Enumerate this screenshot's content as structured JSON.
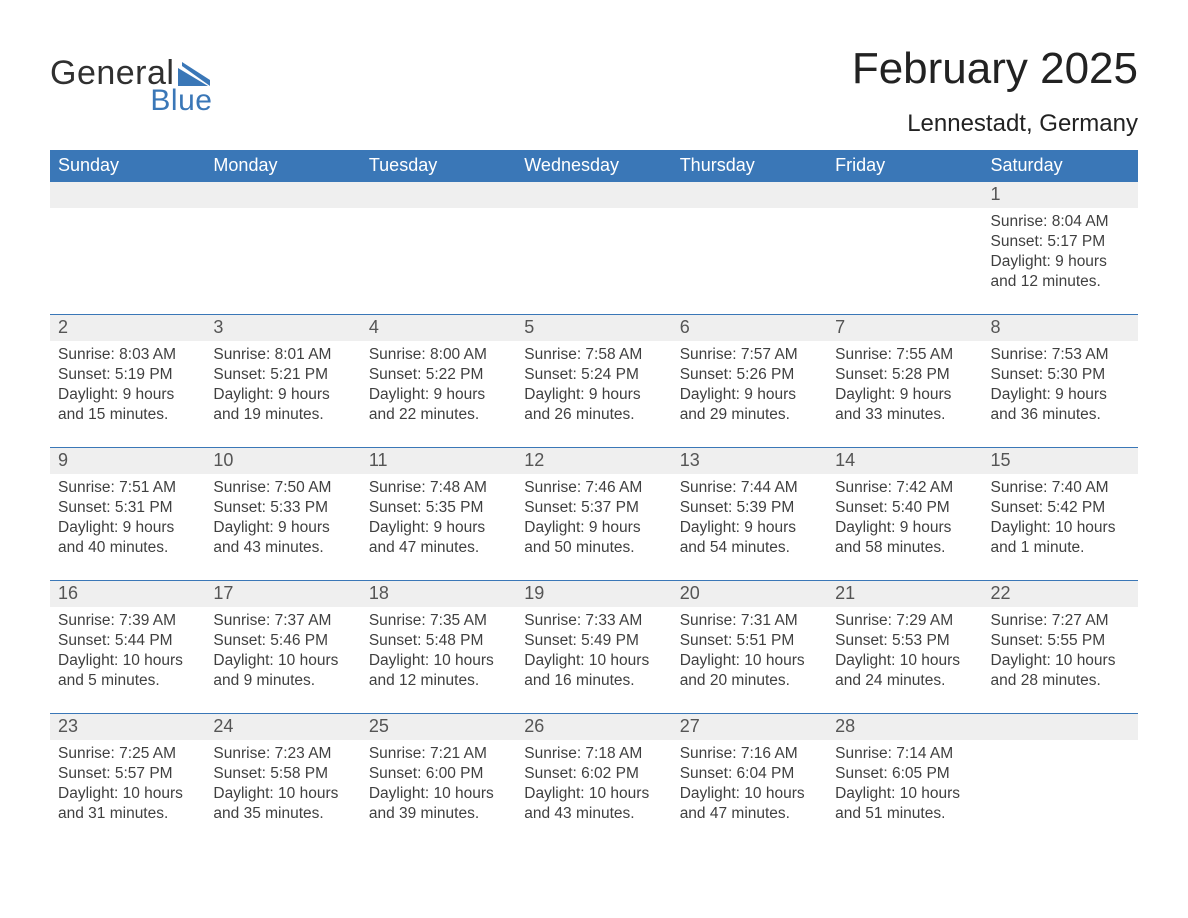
{
  "brand": {
    "word1": "General",
    "word2": "Blue",
    "flag_color": "#3a77b7"
  },
  "title": "February 2025",
  "location": "Lennestadt, Germany",
  "colors": {
    "accent": "#3a77b7",
    "background": "#ffffff",
    "band": "#efefef",
    "text": "#2b2b2b"
  },
  "day_names": [
    "Sunday",
    "Monday",
    "Tuesday",
    "Wednesday",
    "Thursday",
    "Friday",
    "Saturday"
  ],
  "weeks": [
    [
      null,
      null,
      null,
      null,
      null,
      null,
      {
        "n": "1",
        "sunrise": "Sunrise: 8:04 AM",
        "sunset": "Sunset: 5:17 PM",
        "dl1": "Daylight: 9 hours",
        "dl2": "and 12 minutes."
      }
    ],
    [
      {
        "n": "2",
        "sunrise": "Sunrise: 8:03 AM",
        "sunset": "Sunset: 5:19 PM",
        "dl1": "Daylight: 9 hours",
        "dl2": "and 15 minutes."
      },
      {
        "n": "3",
        "sunrise": "Sunrise: 8:01 AM",
        "sunset": "Sunset: 5:21 PM",
        "dl1": "Daylight: 9 hours",
        "dl2": "and 19 minutes."
      },
      {
        "n": "4",
        "sunrise": "Sunrise: 8:00 AM",
        "sunset": "Sunset: 5:22 PM",
        "dl1": "Daylight: 9 hours",
        "dl2": "and 22 minutes."
      },
      {
        "n": "5",
        "sunrise": "Sunrise: 7:58 AM",
        "sunset": "Sunset: 5:24 PM",
        "dl1": "Daylight: 9 hours",
        "dl2": "and 26 minutes."
      },
      {
        "n": "6",
        "sunrise": "Sunrise: 7:57 AM",
        "sunset": "Sunset: 5:26 PM",
        "dl1": "Daylight: 9 hours",
        "dl2": "and 29 minutes."
      },
      {
        "n": "7",
        "sunrise": "Sunrise: 7:55 AM",
        "sunset": "Sunset: 5:28 PM",
        "dl1": "Daylight: 9 hours",
        "dl2": "and 33 minutes."
      },
      {
        "n": "8",
        "sunrise": "Sunrise: 7:53 AM",
        "sunset": "Sunset: 5:30 PM",
        "dl1": "Daylight: 9 hours",
        "dl2": "and 36 minutes."
      }
    ],
    [
      {
        "n": "9",
        "sunrise": "Sunrise: 7:51 AM",
        "sunset": "Sunset: 5:31 PM",
        "dl1": "Daylight: 9 hours",
        "dl2": "and 40 minutes."
      },
      {
        "n": "10",
        "sunrise": "Sunrise: 7:50 AM",
        "sunset": "Sunset: 5:33 PM",
        "dl1": "Daylight: 9 hours",
        "dl2": "and 43 minutes."
      },
      {
        "n": "11",
        "sunrise": "Sunrise: 7:48 AM",
        "sunset": "Sunset: 5:35 PM",
        "dl1": "Daylight: 9 hours",
        "dl2": "and 47 minutes."
      },
      {
        "n": "12",
        "sunrise": "Sunrise: 7:46 AM",
        "sunset": "Sunset: 5:37 PM",
        "dl1": "Daylight: 9 hours",
        "dl2": "and 50 minutes."
      },
      {
        "n": "13",
        "sunrise": "Sunrise: 7:44 AM",
        "sunset": "Sunset: 5:39 PM",
        "dl1": "Daylight: 9 hours",
        "dl2": "and 54 minutes."
      },
      {
        "n": "14",
        "sunrise": "Sunrise: 7:42 AM",
        "sunset": "Sunset: 5:40 PM",
        "dl1": "Daylight: 9 hours",
        "dl2": "and 58 minutes."
      },
      {
        "n": "15",
        "sunrise": "Sunrise: 7:40 AM",
        "sunset": "Sunset: 5:42 PM",
        "dl1": "Daylight: 10 hours",
        "dl2": "and 1 minute."
      }
    ],
    [
      {
        "n": "16",
        "sunrise": "Sunrise: 7:39 AM",
        "sunset": "Sunset: 5:44 PM",
        "dl1": "Daylight: 10 hours",
        "dl2": "and 5 minutes."
      },
      {
        "n": "17",
        "sunrise": "Sunrise: 7:37 AM",
        "sunset": "Sunset: 5:46 PM",
        "dl1": "Daylight: 10 hours",
        "dl2": "and 9 minutes."
      },
      {
        "n": "18",
        "sunrise": "Sunrise: 7:35 AM",
        "sunset": "Sunset: 5:48 PM",
        "dl1": "Daylight: 10 hours",
        "dl2": "and 12 minutes."
      },
      {
        "n": "19",
        "sunrise": "Sunrise: 7:33 AM",
        "sunset": "Sunset: 5:49 PM",
        "dl1": "Daylight: 10 hours",
        "dl2": "and 16 minutes."
      },
      {
        "n": "20",
        "sunrise": "Sunrise: 7:31 AM",
        "sunset": "Sunset: 5:51 PM",
        "dl1": "Daylight: 10 hours",
        "dl2": "and 20 minutes."
      },
      {
        "n": "21",
        "sunrise": "Sunrise: 7:29 AM",
        "sunset": "Sunset: 5:53 PM",
        "dl1": "Daylight: 10 hours",
        "dl2": "and 24 minutes."
      },
      {
        "n": "22",
        "sunrise": "Sunrise: 7:27 AM",
        "sunset": "Sunset: 5:55 PM",
        "dl1": "Daylight: 10 hours",
        "dl2": "and 28 minutes."
      }
    ],
    [
      {
        "n": "23",
        "sunrise": "Sunrise: 7:25 AM",
        "sunset": "Sunset: 5:57 PM",
        "dl1": "Daylight: 10 hours",
        "dl2": "and 31 minutes."
      },
      {
        "n": "24",
        "sunrise": "Sunrise: 7:23 AM",
        "sunset": "Sunset: 5:58 PM",
        "dl1": "Daylight: 10 hours",
        "dl2": "and 35 minutes."
      },
      {
        "n": "25",
        "sunrise": "Sunrise: 7:21 AM",
        "sunset": "Sunset: 6:00 PM",
        "dl1": "Daylight: 10 hours",
        "dl2": "and 39 minutes."
      },
      {
        "n": "26",
        "sunrise": "Sunrise: 7:18 AM",
        "sunset": "Sunset: 6:02 PM",
        "dl1": "Daylight: 10 hours",
        "dl2": "and 43 minutes."
      },
      {
        "n": "27",
        "sunrise": "Sunrise: 7:16 AM",
        "sunset": "Sunset: 6:04 PM",
        "dl1": "Daylight: 10 hours",
        "dl2": "and 47 minutes."
      },
      {
        "n": "28",
        "sunrise": "Sunrise: 7:14 AM",
        "sunset": "Sunset: 6:05 PM",
        "dl1": "Daylight: 10 hours",
        "dl2": "and 51 minutes."
      },
      null
    ]
  ]
}
